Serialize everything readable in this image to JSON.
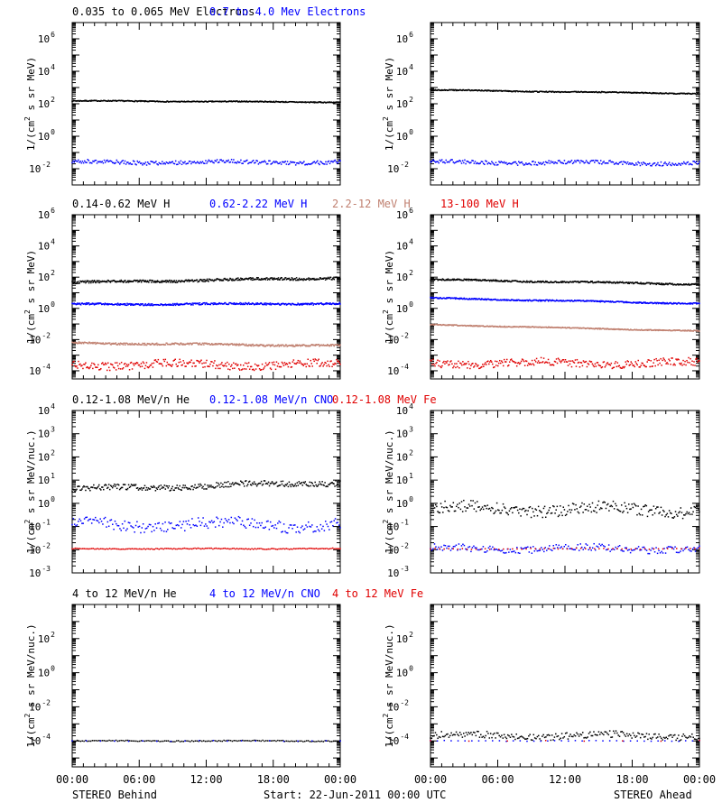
{
  "footer": {
    "left": "STEREO Behind",
    "center": "Start: 22-Jun-2011 00:00 UTC",
    "right": "STEREO Ahead"
  },
  "chart_data": [
    {
      "row": 1,
      "type": "scatter",
      "log_y": true,
      "ylim": [
        0.001,
        10000000
      ],
      "yticks_exp": [
        -2,
        0,
        2,
        4,
        6
      ],
      "ylabel": "1/(cm2 s sr MeV)",
      "xlim": [
        "00:00",
        "24:00"
      ],
      "xticks": [
        "00:00",
        "06:00",
        "12:00",
        "18:00",
        "00:00"
      ],
      "title_parts": [
        {
          "text": "0.035 to 0.065 MeV Electrons",
          "color": "#000000"
        },
        {
          "text": "0.7 to 4.0 Mev Electrons",
          "color": "#0000ff"
        }
      ],
      "panels": {
        "behind": [
          {
            "name": "0.035 to 0.065 MeV Electrons",
            "color": "#000000",
            "start": 150,
            "end": 125,
            "jitter": 0.03,
            "density": 400
          },
          {
            "name": "0.7 to 4.0 Mev Electrons",
            "color": "#0000ff",
            "start": 0.025,
            "end": 0.025,
            "jitter": 0.12,
            "density": 260
          }
        ],
        "ahead": [
          {
            "name": "0.035 to 0.065 MeV Electrons",
            "color": "#000000",
            "start": 700,
            "end": 420,
            "jitter": 0.03,
            "density": 400
          },
          {
            "name": "0.7 to 4.0 Mev Electrons",
            "color": "#0000ff",
            "start": 0.025,
            "end": 0.022,
            "jitter": 0.12,
            "density": 260
          }
        ]
      }
    },
    {
      "row": 2,
      "type": "scatter",
      "log_y": true,
      "ylim": [
        3e-05,
        1000000
      ],
      "yticks_exp": [
        -4,
        -2,
        0,
        2,
        4,
        6
      ],
      "ylabel": "1/(cm2 s sr MeV)",
      "xlim": [
        "00:00",
        "24:00"
      ],
      "xticks": [
        "00:00",
        "06:00",
        "12:00",
        "18:00",
        "00:00"
      ],
      "title_parts": [
        {
          "text": "0.14-0.62 MeV H",
          "color": "#000000"
        },
        {
          "text": "0.62-2.22 MeV H",
          "color": "#0000ff"
        },
        {
          "text": "2.2-12 MeV H",
          "color": "#c08070"
        },
        {
          "text": "13-100 MeV H",
          "color": "#e00000"
        }
      ],
      "panels": {
        "behind": [
          {
            "name": "0.14-0.62 MeV H",
            "color": "#000000",
            "start": 45,
            "end": 90,
            "jitter": 0.08,
            "density": 400
          },
          {
            "name": "0.62-2.22 MeV H",
            "color": "#0000ff",
            "start": 1.8,
            "end": 2.0,
            "jitter": 0.06,
            "density": 400
          },
          {
            "name": "2.2-12 MeV H",
            "color": "#c08070",
            "start": 0.006,
            "end": 0.004,
            "jitter": 0.06,
            "density": 400
          },
          {
            "name": "13-100 MeV H",
            "color": "#e00000",
            "start": 0.00025,
            "end": 0.00025,
            "jitter": 0.25,
            "density": 300
          }
        ],
        "ahead": [
          {
            "name": "0.14-0.62 MeV H",
            "color": "#000000",
            "start": 70,
            "end": 35,
            "jitter": 0.05,
            "density": 400
          },
          {
            "name": "0.62-2.22 MeV H",
            "color": "#0000ff",
            "start": 4.5,
            "end": 2.0,
            "jitter": 0.04,
            "density": 400
          },
          {
            "name": "2.2-12 MeV H",
            "color": "#c08070",
            "start": 0.09,
            "end": 0.035,
            "jitter": 0.03,
            "density": 400
          },
          {
            "name": "13-100 MeV H",
            "color": "#e00000",
            "start": 0.0003,
            "end": 0.0003,
            "jitter": 0.25,
            "density": 300
          }
        ]
      }
    },
    {
      "row": 3,
      "type": "scatter",
      "log_y": true,
      "ylim": [
        0.001,
        10000
      ],
      "yticks_exp": [
        -3,
        -2,
        -1,
        0,
        1,
        2,
        3,
        4
      ],
      "ylabel": "1/(cm2 s sr MeV/nuc.)",
      "xlim": [
        "00:00",
        "24:00"
      ],
      "xticks": [
        "00:00",
        "06:00",
        "12:00",
        "18:00",
        "00:00"
      ],
      "title_parts": [
        {
          "text": "0.12-1.08 MeV/n He",
          "color": "#000000"
        },
        {
          "text": "0.12-1.08 MeV/n CNO",
          "color": "#0000ff"
        },
        {
          "text": "0.12-1.08 MeV Fe",
          "color": "#e00000"
        }
      ],
      "panels": {
        "behind": [
          {
            "name": "0.12-1.08 MeV/n He",
            "color": "#000000",
            "start": 4,
            "end": 8,
            "jitter": 0.12,
            "density": 300
          },
          {
            "name": "0.12-1.08 MeV/n CNO",
            "color": "#0000ff",
            "start": 0.12,
            "end": 0.12,
            "jitter": 0.25,
            "density": 220
          },
          {
            "name": "0.12-1.08 MeV Fe",
            "color": "#e00000",
            "start": 0.011,
            "end": 0.011,
            "jitter": 0.02,
            "density": 180
          }
        ],
        "ahead": [
          {
            "name": "0.12-1.08 MeV/n He",
            "color": "#000000",
            "start": 0.6,
            "end": 0.5,
            "jitter": 0.25,
            "density": 260
          },
          {
            "name": "0.12-1.08 MeV/n CNO",
            "color": "#0000ff",
            "start": 0.011,
            "end": 0.011,
            "jitter": 0.15,
            "density": 200
          },
          {
            "name": "0.12-1.08 MeV Fe",
            "color": "#e00000",
            "start": 0.011,
            "end": 0.011,
            "jitter": 0.02,
            "density": 60
          }
        ]
      }
    },
    {
      "row": 4,
      "type": "scatter",
      "log_y": true,
      "ylim": [
        3e-06,
        10000
      ],
      "yticks_exp": [
        -4,
        -2,
        0,
        2
      ],
      "ylabel": "1/(cm2 s sr MeV/nuc.)",
      "xlim": [
        "00:00",
        "24:00"
      ],
      "xticks": [
        "00:00",
        "06:00",
        "12:00",
        "18:00",
        "00:00"
      ],
      "title_parts": [
        {
          "text": "4 to 12 MeV/n He",
          "color": "#000000"
        },
        {
          "text": "4 to 12 MeV/n CNO",
          "color": "#0000ff"
        },
        {
          "text": "4 to 12 MeV Fe",
          "color": "#e00000"
        }
      ],
      "panels": {
        "behind": [
          {
            "name": "4 to 12 MeV/n He",
            "color": "#000000",
            "start": 0.0001,
            "end": 0.0001,
            "jitter": 0.03,
            "density": 160
          },
          {
            "name": "4 to 12 MeV/n CNO",
            "color": "#0000ff",
            "start": 0.0001,
            "end": 0.0001,
            "jitter": 0.02,
            "density": 20
          }
        ],
        "ahead": [
          {
            "name": "4 to 12 MeV/n He",
            "color": "#000000",
            "start": 0.0002,
            "end": 0.0002,
            "jitter": 0.2,
            "density": 220
          },
          {
            "name": "4 to 12 MeV/n CNO",
            "color": "#0000ff",
            "start": 0.0001,
            "end": 0.0001,
            "jitter": 0.02,
            "density": 40
          },
          {
            "name": "4 to 12 MeV Fe",
            "color": "#e00000",
            "start": 0.0001,
            "end": 0.0001,
            "jitter": 0.02,
            "density": 8
          }
        ]
      }
    }
  ]
}
